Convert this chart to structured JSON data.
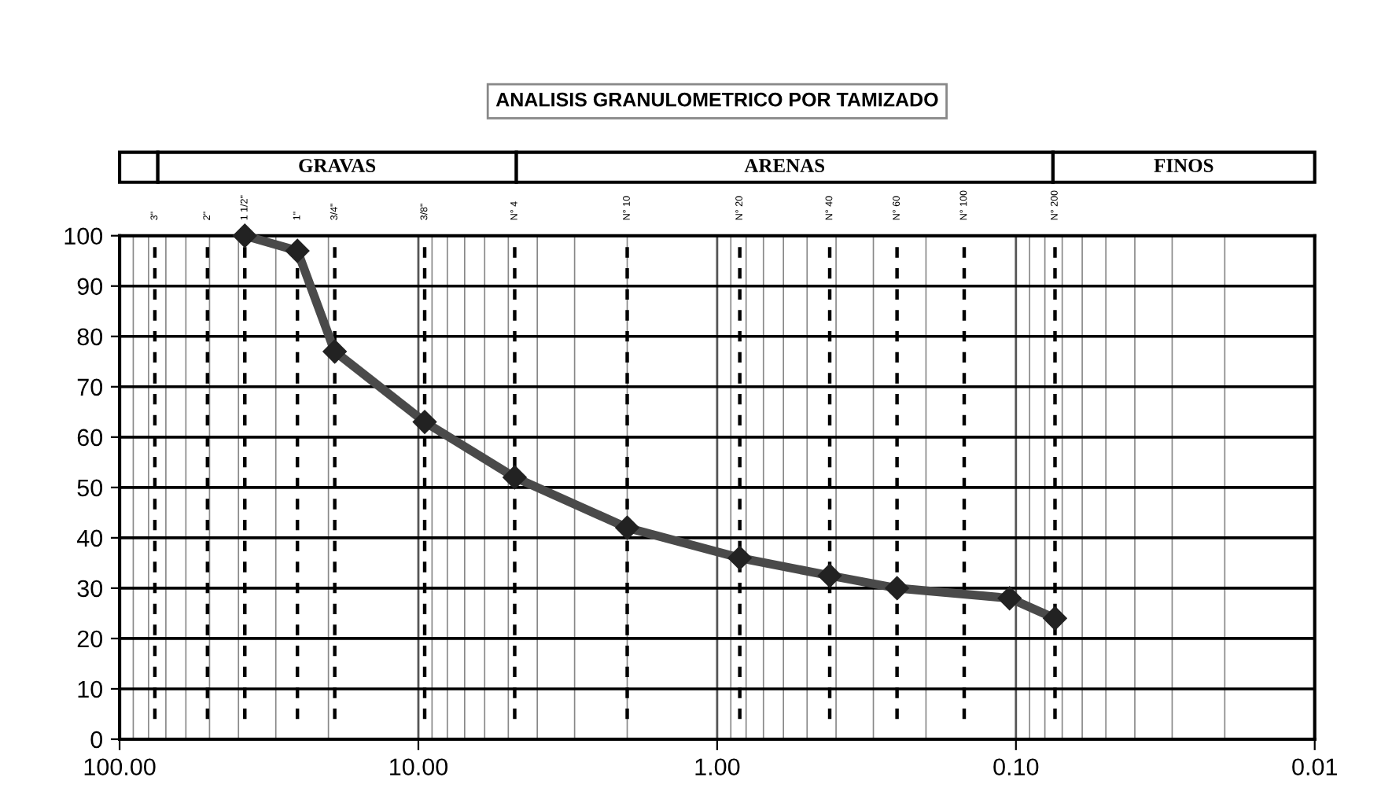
{
  "chart_data": [
    {
      "type": "other",
      "title": "ANALISIS GRANULOMETRICO POR TAMIZADO",
      "categories": [
        null,
        "GRAVAS",
        "ARENAS",
        "FINOS"
      ]
    },
    {
      "type": "line",
      "x": [
        38.1,
        25.4,
        19.05,
        9.525,
        4.76,
        2.0,
        0.84,
        0.42,
        0.25,
        0.105,
        0.074
      ],
      "series": [
        {
          "color": "#4a4a4a",
          "values": [
            100,
            97,
            77,
            63,
            52,
            42,
            36,
            32.5,
            30,
            28,
            24
          ]
        }
      ],
      "marker": "diamond",
      "line_style": "solid",
      "log": "x",
      "grid": true,
      "xlim": [
        100,
        0.01
      ],
      "xticks": [
        {
          "value": 100,
          "label": "100.00"
        },
        {
          "value": 10,
          "label": "10.00"
        },
        {
          "value": 1,
          "label": "1.00"
        },
        {
          "value": 0.1,
          "label": "0.10"
        },
        {
          "value": 0.01,
          "label": "0.01"
        }
      ],
      "annotations": [
        {
          "text": "3\"",
          "x": 76.2,
          "y": 100
        },
        {
          "text": "2\"",
          "x": 50.8,
          "y": 100
        },
        {
          "text": "1 1/2\"",
          "x": 38.1,
          "y": 100
        },
        {
          "text": "1\"",
          "x": 25.4,
          "y": 100
        },
        {
          "text": "3/4\"",
          "x": 19.05,
          "y": 100
        },
        {
          "text": "3/8\"",
          "x": 9.525,
          "y": 100
        },
        {
          "text": "N° 4",
          "x": 4.76,
          "y": 100
        },
        {
          "text": "N° 10",
          "x": 2.0,
          "y": 100
        },
        {
          "text": "N° 20",
          "x": 0.84,
          "y": 100
        },
        {
          "text": "N° 40",
          "x": 0.42,
          "y": 100
        },
        {
          "text": "N° 60",
          "x": 0.25,
          "y": 100
        },
        {
          "text": "N° 100",
          "x": 0.149,
          "y": 100
        },
        {
          "text": "N° 200",
          "x": 0.074,
          "y": 100
        }
      ],
      "ylim": [
        0,
        100
      ],
      "yticks": [
        0,
        10,
        20,
        30,
        40,
        50,
        60,
        70,
        80,
        90,
        100
      ],
      "ref_lines": [
        {
          "axis": "x",
          "value": 76.2,
          "color": "#000000",
          "line_style": "dashed"
        },
        {
          "axis": "x",
          "value": 50.8,
          "color": "#000000",
          "line_style": "dashed"
        },
        {
          "axis": "x",
          "value": 38.1,
          "color": "#000000",
          "line_style": "dashed"
        },
        {
          "axis": "x",
          "value": 25.4,
          "color": "#000000",
          "line_style": "dashed"
        },
        {
          "axis": "x",
          "value": 19.05,
          "color": "#000000",
          "line_style": "dashed"
        },
        {
          "axis": "x",
          "value": 9.525,
          "color": "#000000",
          "line_style": "dashed"
        },
        {
          "axis": "x",
          "value": 4.76,
          "color": "#000000",
          "line_style": "dashed"
        },
        {
          "axis": "x",
          "value": 2.0,
          "color": "#000000",
          "line_style": "dashed"
        },
        {
          "axis": "x",
          "value": 0.84,
          "color": "#000000",
          "line_style": "dashed"
        },
        {
          "axis": "x",
          "value": 0.42,
          "color": "#000000",
          "line_style": "dashed"
        },
        {
          "axis": "x",
          "value": 0.25,
          "color": "#000000",
          "line_style": "dashed"
        },
        {
          "axis": "x",
          "value": 0.149,
          "color": "#000000",
          "line_style": "dashed"
        },
        {
          "axis": "x",
          "value": 0.074,
          "color": "#000000",
          "line_style": "dashed"
        }
      ]
    }
  ]
}
